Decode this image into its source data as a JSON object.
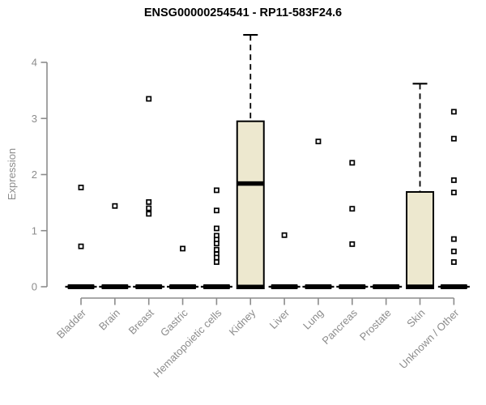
{
  "chart_data": {
    "type": "boxplot",
    "title": "ENSG00000254541 - RP11-583F24.6",
    "ylabel": "Expression",
    "xlabel": "",
    "ylim": [
      0,
      4.6
    ],
    "yticks": [
      0,
      1,
      2,
      3,
      4
    ],
    "grid": false,
    "legend": "none",
    "box_fill": "#ede8cf",
    "box_stroke": "#000000",
    "axis_color": "#8c8c8c",
    "outlier_marker": "open-square",
    "categories": [
      "Bladder",
      "Brain",
      "Breast",
      "Gastric",
      "Hematopoietic cells",
      "Kidney",
      "Liver",
      "Lung",
      "Pancreas",
      "Prostate",
      "Skin",
      "Unknown / Other"
    ],
    "series": [
      {
        "category": "Bladder",
        "q1": 0,
        "median": 0,
        "q3": 0,
        "whisker_low": 0,
        "whisker_high": 0,
        "outliers": [
          1.77,
          0.72
        ]
      },
      {
        "category": "Brain",
        "q1": 0,
        "median": 0,
        "q3": 0,
        "whisker_low": 0,
        "whisker_high": 0,
        "outliers": [
          1.44
        ]
      },
      {
        "category": "Breast",
        "q1": 0,
        "median": 0,
        "q3": 0,
        "whisker_low": 0,
        "whisker_high": 0,
        "outliers": [
          3.35,
          1.51,
          1.4,
          1.3
        ]
      },
      {
        "category": "Gastric",
        "q1": 0,
        "median": 0,
        "q3": 0,
        "whisker_low": 0,
        "whisker_high": 0,
        "outliers": [
          0.68
        ]
      },
      {
        "category": "Hematopoietic cells",
        "q1": 0,
        "median": 0,
        "q3": 0,
        "whisker_low": 0,
        "whisker_high": 0,
        "outliers": [
          1.72,
          1.36,
          1.04,
          0.91,
          0.84,
          0.77,
          0.66,
          0.58,
          0.52,
          0.44
        ]
      },
      {
        "category": "Kidney",
        "q1": 0,
        "median": 1.84,
        "q3": 2.95,
        "whisker_low": 0,
        "whisker_high": 4.49,
        "outliers": []
      },
      {
        "category": "Liver",
        "q1": 0,
        "median": 0,
        "q3": 0,
        "whisker_low": 0,
        "whisker_high": 0,
        "outliers": [
          0.92
        ]
      },
      {
        "category": "Lung",
        "q1": 0,
        "median": 0,
        "q3": 0,
        "whisker_low": 0,
        "whisker_high": 0,
        "outliers": [
          2.59
        ]
      },
      {
        "category": "Pancreas",
        "q1": 0,
        "median": 0,
        "q3": 0,
        "whisker_low": 0,
        "whisker_high": 0,
        "outliers": [
          2.21,
          1.39,
          0.76
        ]
      },
      {
        "category": "Prostate",
        "q1": 0,
        "median": 0,
        "q3": 0,
        "whisker_low": 0,
        "whisker_high": 0,
        "outliers": []
      },
      {
        "category": "Skin",
        "q1": 0,
        "median": 0,
        "q3": 1.69,
        "whisker_low": 0,
        "whisker_high": 3.62,
        "outliers": []
      },
      {
        "category": "Unknown / Other",
        "q1": 0,
        "median": 0,
        "q3": 0,
        "whisker_low": 0,
        "whisker_high": 0,
        "outliers": [
          3.12,
          2.64,
          1.9,
          1.68,
          0.85,
          0.63,
          0.44
        ]
      }
    ]
  }
}
